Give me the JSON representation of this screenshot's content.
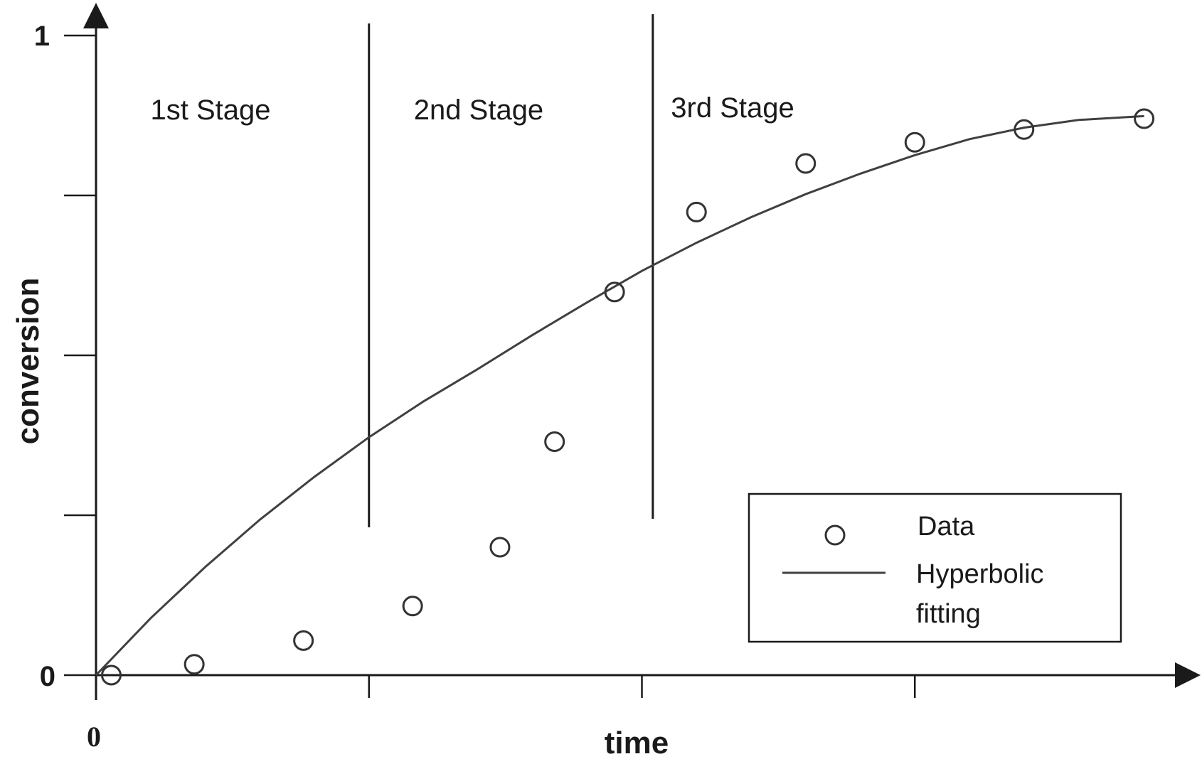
{
  "chart_data": {
    "type": "scatter",
    "xlabel": "time",
    "ylabel": "conversion",
    "x_tick_labels": [
      "0"
    ],
    "y_tick_labels": [
      "0",
      "1"
    ],
    "xlim": [
      0,
      1
    ],
    "ylim": [
      0,
      1
    ],
    "grid": false,
    "legend_position": "bottom-right",
    "stages": [
      {
        "label": "1st Stage",
        "boundary": 0.25
      },
      {
        "label": "2nd Stage",
        "boundary": 0.51
      },
      {
        "label": "3rd Stage",
        "boundary": null
      }
    ],
    "series": [
      {
        "name": "Data",
        "style": "open-circle",
        "x": [
          0.014,
          0.09,
          0.19,
          0.29,
          0.37,
          0.42,
          0.475,
          0.55,
          0.65,
          0.75,
          0.85,
          0.96
        ],
        "y": [
          0.0,
          0.017,
          0.054,
          0.108,
          0.2,
          0.365,
          0.599,
          0.724,
          0.8,
          0.833,
          0.853,
          0.87
        ]
      },
      {
        "name": "Hyperbolic fitting",
        "style": "line",
        "x": [
          0,
          0.05,
          0.1,
          0.15,
          0.2,
          0.25,
          0.3,
          0.35,
          0.4,
          0.45,
          0.5,
          0.55,
          0.6,
          0.65,
          0.7,
          0.75,
          0.8,
          0.85,
          0.9,
          0.95,
          0.96
        ],
        "y": [
          0.0,
          0.089,
          0.169,
          0.243,
          0.31,
          0.372,
          0.428,
          0.479,
          0.532,
          0.583,
          0.632,
          0.676,
          0.716,
          0.752,
          0.784,
          0.813,
          0.838,
          0.856,
          0.868,
          0.873,
          0.874
        ]
      }
    ]
  },
  "legend": {
    "data_label": "Data",
    "fit_label_line1": "Hyperbolic",
    "fit_label_line2": "fitting"
  },
  "colors": {
    "axis": "#1a1a1a",
    "curve": "#404040",
    "marker": "#333333"
  }
}
